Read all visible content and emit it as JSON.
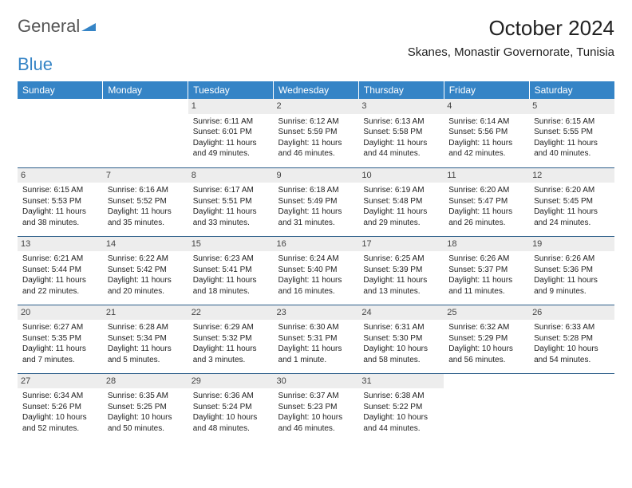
{
  "brand": {
    "word1": "General",
    "word2": "Blue"
  },
  "title": "October 2024",
  "location": "Skanes, Monastir Governorate, Tunisia",
  "colors": {
    "header_bg": "#3584c6",
    "header_text": "#ffffff",
    "daynum_bg": "#ededed",
    "week_border": "#2b5d89",
    "logo_blue": "#3584c6"
  },
  "weekdays": [
    "Sunday",
    "Monday",
    "Tuesday",
    "Wednesday",
    "Thursday",
    "Friday",
    "Saturday"
  ],
  "weeks": [
    [
      null,
      null,
      {
        "n": "1",
        "sr": "6:11 AM",
        "ss": "6:01 PM",
        "dl": "11 hours and 49 minutes."
      },
      {
        "n": "2",
        "sr": "6:12 AM",
        "ss": "5:59 PM",
        "dl": "11 hours and 46 minutes."
      },
      {
        "n": "3",
        "sr": "6:13 AM",
        "ss": "5:58 PM",
        "dl": "11 hours and 44 minutes."
      },
      {
        "n": "4",
        "sr": "6:14 AM",
        "ss": "5:56 PM",
        "dl": "11 hours and 42 minutes."
      },
      {
        "n": "5",
        "sr": "6:15 AM",
        "ss": "5:55 PM",
        "dl": "11 hours and 40 minutes."
      }
    ],
    [
      {
        "n": "6",
        "sr": "6:15 AM",
        "ss": "5:53 PM",
        "dl": "11 hours and 38 minutes."
      },
      {
        "n": "7",
        "sr": "6:16 AM",
        "ss": "5:52 PM",
        "dl": "11 hours and 35 minutes."
      },
      {
        "n": "8",
        "sr": "6:17 AM",
        "ss": "5:51 PM",
        "dl": "11 hours and 33 minutes."
      },
      {
        "n": "9",
        "sr": "6:18 AM",
        "ss": "5:49 PM",
        "dl": "11 hours and 31 minutes."
      },
      {
        "n": "10",
        "sr": "6:19 AM",
        "ss": "5:48 PM",
        "dl": "11 hours and 29 minutes."
      },
      {
        "n": "11",
        "sr": "6:20 AM",
        "ss": "5:47 PM",
        "dl": "11 hours and 26 minutes."
      },
      {
        "n": "12",
        "sr": "6:20 AM",
        "ss": "5:45 PM",
        "dl": "11 hours and 24 minutes."
      }
    ],
    [
      {
        "n": "13",
        "sr": "6:21 AM",
        "ss": "5:44 PM",
        "dl": "11 hours and 22 minutes."
      },
      {
        "n": "14",
        "sr": "6:22 AM",
        "ss": "5:42 PM",
        "dl": "11 hours and 20 minutes."
      },
      {
        "n": "15",
        "sr": "6:23 AM",
        "ss": "5:41 PM",
        "dl": "11 hours and 18 minutes."
      },
      {
        "n": "16",
        "sr": "6:24 AM",
        "ss": "5:40 PM",
        "dl": "11 hours and 16 minutes."
      },
      {
        "n": "17",
        "sr": "6:25 AM",
        "ss": "5:39 PM",
        "dl": "11 hours and 13 minutes."
      },
      {
        "n": "18",
        "sr": "6:26 AM",
        "ss": "5:37 PM",
        "dl": "11 hours and 11 minutes."
      },
      {
        "n": "19",
        "sr": "6:26 AM",
        "ss": "5:36 PM",
        "dl": "11 hours and 9 minutes."
      }
    ],
    [
      {
        "n": "20",
        "sr": "6:27 AM",
        "ss": "5:35 PM",
        "dl": "11 hours and 7 minutes."
      },
      {
        "n": "21",
        "sr": "6:28 AM",
        "ss": "5:34 PM",
        "dl": "11 hours and 5 minutes."
      },
      {
        "n": "22",
        "sr": "6:29 AM",
        "ss": "5:32 PM",
        "dl": "11 hours and 3 minutes."
      },
      {
        "n": "23",
        "sr": "6:30 AM",
        "ss": "5:31 PM",
        "dl": "11 hours and 1 minute."
      },
      {
        "n": "24",
        "sr": "6:31 AM",
        "ss": "5:30 PM",
        "dl": "10 hours and 58 minutes."
      },
      {
        "n": "25",
        "sr": "6:32 AM",
        "ss": "5:29 PM",
        "dl": "10 hours and 56 minutes."
      },
      {
        "n": "26",
        "sr": "6:33 AM",
        "ss": "5:28 PM",
        "dl": "10 hours and 54 minutes."
      }
    ],
    [
      {
        "n": "27",
        "sr": "6:34 AM",
        "ss": "5:26 PM",
        "dl": "10 hours and 52 minutes."
      },
      {
        "n": "28",
        "sr": "6:35 AM",
        "ss": "5:25 PM",
        "dl": "10 hours and 50 minutes."
      },
      {
        "n": "29",
        "sr": "6:36 AM",
        "ss": "5:24 PM",
        "dl": "10 hours and 48 minutes."
      },
      {
        "n": "30",
        "sr": "6:37 AM",
        "ss": "5:23 PM",
        "dl": "10 hours and 46 minutes."
      },
      {
        "n": "31",
        "sr": "6:38 AM",
        "ss": "5:22 PM",
        "dl": "10 hours and 44 minutes."
      },
      null,
      null
    ]
  ],
  "labels": {
    "sunrise": "Sunrise:",
    "sunset": "Sunset:",
    "daylight": "Daylight:"
  }
}
